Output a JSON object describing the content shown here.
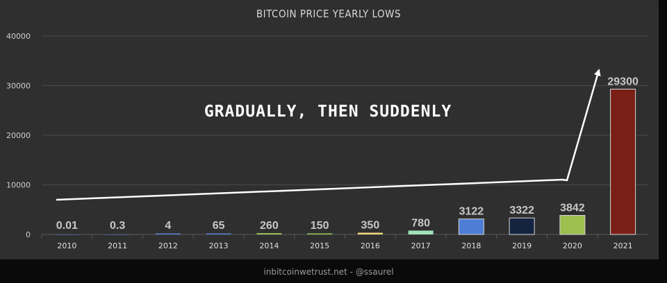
{
  "colors": {
    "grid": "#4a4a4a",
    "axis": "#5a5a5a",
    "arrow": "#ffffff"
  },
  "annotation": "GRADUALLY, THEN SUDDENLY",
  "footer": "inbitcoinwetrust.net - @ssaurel",
  "chart_data": {
    "type": "bar",
    "title": "BITCOIN PRICE YEARLY LOWS",
    "xlabel": "",
    "ylabel": "",
    "ylim": [
      0,
      40000
    ],
    "yticks": [
      0,
      10000,
      20000,
      30000,
      40000
    ],
    "grid": true,
    "categories": [
      "2010",
      "2011",
      "2012",
      "2013",
      "2014",
      "2015",
      "2016",
      "2017",
      "2018",
      "2019",
      "2020",
      "2021"
    ],
    "values": [
      0.01,
      0.3,
      4,
      65,
      260,
      150,
      350,
      780,
      3122,
      3322,
      3842,
      29300
    ],
    "value_labels": [
      "0.01",
      "0.3",
      "4",
      "65",
      "260",
      "150",
      "350",
      "780",
      "3122",
      "3322",
      "3842",
      "29300"
    ],
    "colors": [
      "#5b7fd0",
      "#5b7fd0",
      "#5b7fd0",
      "#5b7fd0",
      "#9ccb5a",
      "#9ccb5a",
      "#f0d878",
      "#9fe2b8",
      "#4e7dd6",
      "#142440",
      "#9cbf4e",
      "#7a1f18"
    ]
  }
}
